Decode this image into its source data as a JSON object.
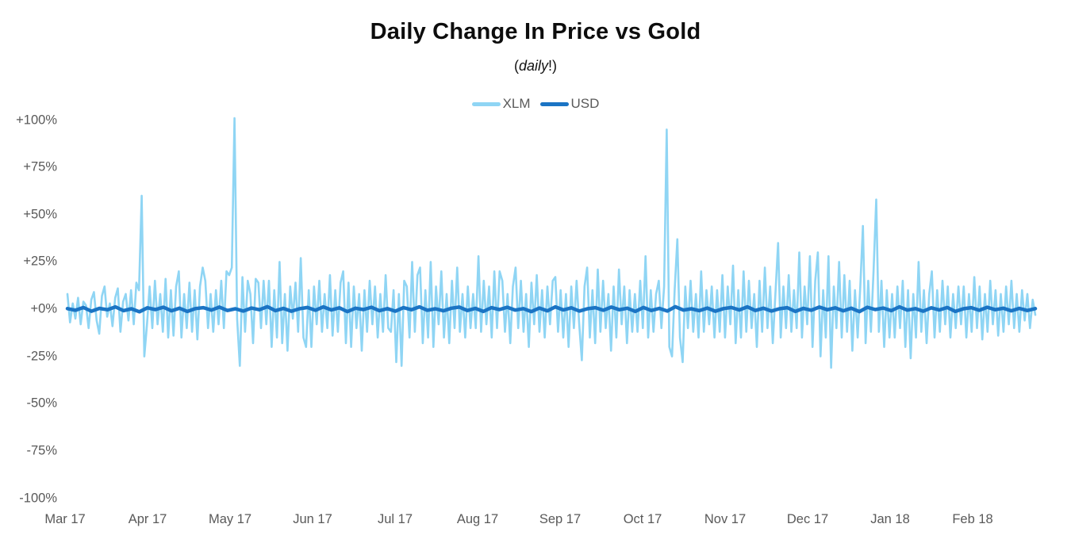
{
  "header": {
    "subtitle_open": "(",
    "subtitle_italic": "daily",
    "subtitle_close": "!)"
  },
  "chart_data": {
    "type": "line",
    "title": "Daily Change In Price vs Gold",
    "subtitle": "(daily!)",
    "grid": false,
    "legend_position": "top-center",
    "x_unit": "daily observations, Mar 2017 - Feb 2018",
    "x_tick_labels": [
      "Mar 17",
      "Apr 17",
      "May 17",
      "Jun 17",
      "Jul 17",
      "Aug 17",
      "Sep 17",
      "Oct 17",
      "Nov 17",
      "Dec 17",
      "Jan 18",
      "Feb 18"
    ],
    "y_tick_labels": [
      "+100%",
      "+75%",
      "+50%",
      "+25%",
      "+0%",
      "-25%",
      "-50%",
      "-75%",
      "-100%"
    ],
    "y_ticks_pct": [
      100,
      75,
      50,
      25,
      0,
      -25,
      -50,
      -75,
      -100
    ],
    "ylim": [
      -100,
      100
    ],
    "label_color": "#595959",
    "series": [
      {
        "name": "XLM",
        "color": "#8FD5F4",
        "width": 2.6,
        "values_pct": [
          8,
          -7,
          3,
          -5,
          6,
          -8,
          4,
          2,
          -10,
          5,
          9,
          -6,
          -13,
          7,
          12,
          -4,
          3,
          -9,
          6,
          11,
          -12,
          4,
          8,
          -6,
          10,
          -8,
          14,
          10,
          60,
          -25,
          -8,
          12,
          -10,
          15,
          -8,
          8,
          -12,
          16,
          -15,
          10,
          -14,
          12,
          20,
          -15,
          8,
          -10,
          14,
          -12,
          10,
          -16,
          12,
          22,
          15,
          -10,
          8,
          -12,
          10,
          -8,
          15,
          -10,
          20,
          18,
          22,
          101,
          -5,
          -30,
          17,
          -12,
          15,
          8,
          -18,
          16,
          14,
          -10,
          15,
          -8,
          15,
          -20,
          10,
          -15,
          25,
          -18,
          8,
          -22,
          12,
          -5,
          14,
          -12,
          27,
          -15,
          -20,
          10,
          -20,
          12,
          -8,
          15,
          -12,
          8,
          -10,
          18,
          -14,
          10,
          -12,
          14,
          20,
          -18,
          14,
          -20,
          12,
          -10,
          8,
          -22,
          10,
          -12,
          15,
          -8,
          12,
          -15,
          8,
          -12,
          18,
          -10,
          -12,
          10,
          -28,
          8,
          -30,
          15,
          12,
          -15,
          25,
          -12,
          18,
          22,
          -18,
          10,
          -15,
          25,
          -20,
          12,
          -8,
          20,
          -15,
          8,
          -18,
          15,
          -10,
          22,
          -12,
          8,
          -15,
          12,
          -10,
          8,
          -10,
          28,
          -12,
          15,
          -8,
          12,
          -15,
          20,
          -10,
          20,
          15,
          -12,
          8,
          -18,
          12,
          22,
          -10,
          15,
          -12,
          8,
          -20,
          14,
          -8,
          18,
          -12,
          10,
          -15,
          12,
          -8,
          15,
          17,
          -12,
          10,
          -15,
          8,
          -20,
          12,
          -10,
          15,
          -8,
          -27,
          12,
          22,
          -15,
          10,
          -18,
          21,
          -12,
          15,
          -10,
          8,
          -22,
          12,
          -15,
          21,
          -8,
          12,
          -18,
          10,
          -12,
          8,
          -12,
          15,
          -10,
          28,
          -15,
          10,
          -12,
          8,
          15,
          -10,
          12,
          95,
          -20,
          -25,
          10,
          37,
          -15,
          -28,
          12,
          -10,
          15,
          -12,
          8,
          -15,
          20,
          -12,
          10,
          -8,
          12,
          -15,
          10,
          -12,
          18,
          -15,
          12,
          -8,
          23,
          -18,
          10,
          -15,
          20,
          -12,
          15,
          -10,
          8,
          -20,
          15,
          -12,
          22,
          -10,
          12,
          -18,
          8,
          35,
          -15,
          12,
          -10,
          18,
          -12,
          10,
          -10,
          30,
          -15,
          12,
          -8,
          28,
          -20,
          15,
          30,
          -25,
          10,
          -15,
          28,
          -31,
          12,
          -10,
          25,
          -15,
          18,
          -12,
          15,
          -22,
          10,
          -15,
          12,
          44,
          -18,
          15,
          -12,
          20,
          58,
          -12,
          15,
          -20,
          10,
          -15,
          8,
          -15,
          12,
          -10,
          15,
          -20,
          10,
          -26,
          8,
          -15,
          25,
          -12,
          10,
          -18,
          8,
          20,
          -15,
          10,
          -12,
          15,
          -8,
          12,
          -15,
          8,
          -10,
          12,
          -8,
          12,
          -15,
          8,
          -12,
          17,
          -10,
          12,
          -16,
          8,
          -12,
          15,
          -8,
          10,
          -14,
          8,
          -12,
          12,
          -8,
          15,
          -10,
          8,
          -12,
          10,
          -6,
          8,
          -10,
          5,
          -3
        ]
      },
      {
        "name": "USD",
        "color": "#1B74C4",
        "width": 4.5,
        "values_pct": [
          0.3,
          -0.6,
          0.9,
          -1.1,
          0.4,
          -0.3,
          1.2,
          -0.8,
          0.2,
          -1.4,
          0.7,
          -0.2,
          1.0,
          -0.9,
          0.5,
          -1.2,
          0.3,
          0.8,
          -0.5,
          1.1,
          -0.7,
          0.2,
          -1.0,
          0.6,
          -0.3,
          1.3,
          -0.8,
          0.4,
          -1.1,
          0.2,
          0.9,
          -0.6,
          1.2,
          -0.4,
          0.7,
          -1.3,
          0.5,
          -0.2,
          1.0,
          -0.8,
          0.3,
          -1.1,
          0.8,
          -0.3,
          1.2,
          -0.6,
          0.2,
          -0.9,
          0.5,
          1.1,
          -0.7,
          0.4,
          -1.2,
          0.8,
          -0.2,
          1.0,
          -0.5,
          0.3,
          -1.3,
          0.6,
          -0.9,
          1.2,
          -0.4,
          0.7,
          -1.0,
          0.2,
          0.8,
          -0.6,
          1.1,
          -0.3,
          0.5,
          -1.2,
          0.9,
          -0.7,
          0.4,
          -1.0,
          1.3,
          -0.5,
          0.2,
          -0.8,
          0.6,
          -1.1,
          0.3,
          0.9,
          -0.4,
          1.2,
          -0.7,
          0.5,
          -1.0,
          0.2,
          0.8,
          -1.2,
          0.4,
          -0.6,
          1.1,
          -0.3,
          0.7,
          -0.9,
          0.5,
          -1.3,
          1.0,
          -0.2,
          0.6,
          -0.8,
          1.2,
          -0.5,
          0.3,
          -1.1,
          0.7,
          -0.4,
          0.9,
          -1.2,
          0.2,
          0.8,
          -0.6,
          1.0,
          -0.3,
          0.5,
          -0.9,
          0.4,
          -0.7,
          0.3
        ]
      }
    ]
  }
}
